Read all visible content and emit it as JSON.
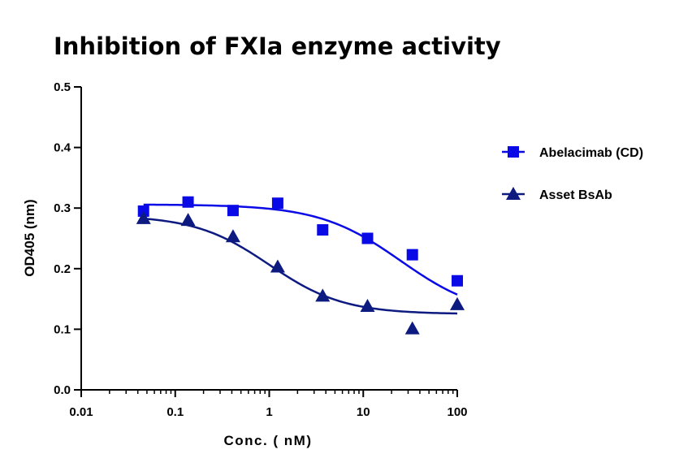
{
  "chart_data": {
    "type": "scatter",
    "title": "Inhibition of FXIa enzyme activity",
    "xlabel": "Conc. ( nM)",
    "ylabel": "OD405 (nm)",
    "x_scale": "log",
    "xlim": [
      0.01,
      100
    ],
    "ylim": [
      0.0,
      0.5
    ],
    "x_tick_labels": [
      "0.01",
      "0.1",
      "1",
      "10",
      "100"
    ],
    "y_tick_labels": [
      "0.0",
      "0.1",
      "0.2",
      "0.3",
      "0.4",
      "0.5"
    ],
    "grid": false,
    "legend_position": "right",
    "series": [
      {
        "name": "Abelacimab (CD)",
        "marker": "square",
        "color": "#0a0ae6",
        "x": [
          0.046,
          0.137,
          0.412,
          1.23,
          3.7,
          11.1,
          33.3,
          100
        ],
        "y": [
          0.295,
          0.31,
          0.296,
          0.308,
          0.264,
          0.25,
          0.223,
          0.18
        ],
        "fit": {
          "top": 0.306,
          "bottom": 0.12,
          "ec50": 25,
          "hill": 1
        }
      },
      {
        "name": "Asset BsAb",
        "marker": "triangle",
        "color": "#0d1a80",
        "x": [
          0.046,
          0.137,
          0.412,
          1.23,
          3.7,
          11.1,
          33.3,
          100
        ],
        "y": [
          0.283,
          0.28,
          0.253,
          0.203,
          0.155,
          0.138,
          0.101,
          0.141
        ],
        "fit": {
          "top": 0.288,
          "bottom": 0.125,
          "ec50": 1.0,
          "hill": 1.1
        }
      }
    ]
  }
}
